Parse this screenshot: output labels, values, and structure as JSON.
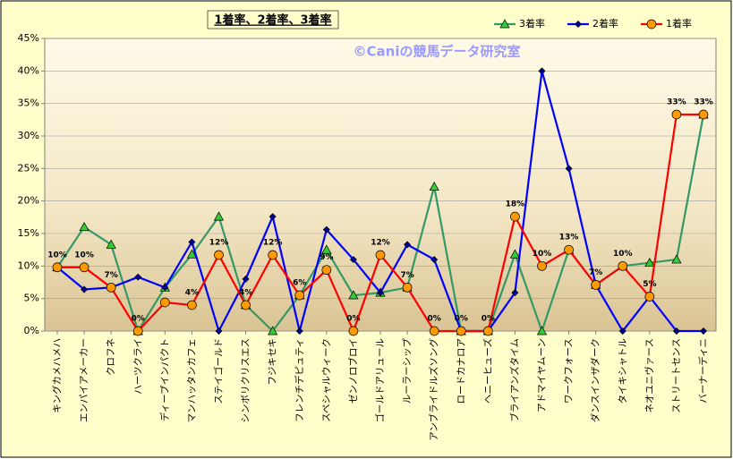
{
  "chart_data": {
    "type": "line",
    "title": "1着率、2着率、3着率",
    "annotations": [
      "©Caniの競馬データ研究室"
    ],
    "categories": [
      "キングカメハメハ",
      "エンパイアメーカー",
      "クロフネ",
      "ハーツクライ",
      "ディープインパクト",
      "マンハッタンカフェ",
      "ステイゴールド",
      "シンボリクリスエス",
      "フジキセキ",
      "フレンチデピュティ",
      "スペシャルウィーク",
      "ゼンノロブロイ",
      "ゴールドアリュール",
      "ルーラーシップ",
      "アンブライドルズソング",
      "ロードカナロア",
      "ヘニーヒューズ",
      "ブライアンズタイム",
      "アドマイヤムーン",
      "ワークフォース",
      "ダンスインザダーク",
      "タイキシャトル",
      "ネオユニヴァース",
      "ストリートセンス",
      "バーナーディニ"
    ],
    "series": [
      {
        "name": "3着率",
        "color": "#339966",
        "marker": "triangle",
        "marker_color": "#33cc33",
        "values": [
          9.8,
          16.0,
          13.3,
          0,
          6.7,
          11.8,
          17.6,
          4.0,
          0,
          5.5,
          12.5,
          5.5,
          5.9,
          6.7,
          22.2,
          0,
          0,
          11.8,
          0,
          12.5,
          7.1,
          10.0,
          10.5,
          11.0,
          33.3
        ]
      },
      {
        "name": "2着率",
        "color": "#0000ff",
        "marker": "diamond",
        "marker_color": "#000099",
        "values": [
          9.8,
          6.4,
          6.7,
          8.3,
          6.7,
          13.7,
          0,
          8.0,
          17.6,
          0,
          15.6,
          11.0,
          5.9,
          13.3,
          11.0,
          0,
          0,
          5.9,
          40.0,
          25.0,
          7.1,
          0,
          5.3,
          0,
          0
        ]
      },
      {
        "name": "1着率",
        "color": "#ff0000",
        "marker": "circle",
        "marker_color": "#ff9900",
        "values": [
          9.8,
          9.8,
          6.7,
          0,
          4.4,
          4.0,
          11.7,
          4.0,
          11.7,
          5.5,
          9.4,
          0,
          11.7,
          6.7,
          0,
          0,
          0,
          17.6,
          10.0,
          12.5,
          7.1,
          10.0,
          5.3,
          33.3,
          33.3
        ],
        "value_labels": [
          "10%",
          "10%",
          "7%",
          "0%",
          null,
          "4%",
          "12%",
          "4%",
          "12%",
          "6%",
          "9%",
          "0%",
          "12%",
          "7%",
          "0%",
          "0%",
          "0%",
          "18%",
          "10%",
          "13%",
          "7%",
          "10%",
          "5%",
          "33%",
          "33%"
        ]
      }
    ],
    "ylim": [
      0,
      45
    ],
    "yticks": [
      {
        "value": 0,
        "label": "0%"
      },
      {
        "value": 5,
        "label": "5%"
      },
      {
        "value": 10,
        "label": "10%"
      },
      {
        "value": 15,
        "label": "15%"
      },
      {
        "value": 20,
        "label": "20%"
      },
      {
        "value": 25,
        "label": "25%"
      },
      {
        "value": 30,
        "label": "30%"
      },
      {
        "value": 35,
        "label": "35%"
      },
      {
        "value": 40,
        "label": "40%"
      },
      {
        "value": 45,
        "label": "45%"
      }
    ],
    "grid": true,
    "legend": "top-right"
  }
}
